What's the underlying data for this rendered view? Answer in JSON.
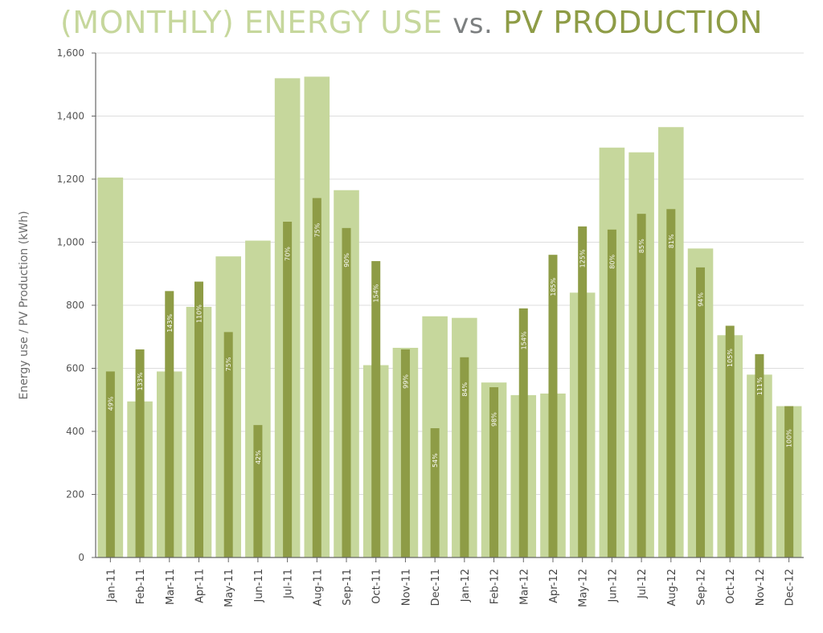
{
  "title": {
    "part1": "(MONTHLY) ENERGY USE",
    "part2": "vs.",
    "part3": "PV PRODUCTION"
  },
  "colors": {
    "energy_use": "#c6d79c",
    "pv_production": "#8e9c46",
    "grid": "#dddddd",
    "axis": "#666666"
  },
  "chart_data": {
    "type": "bar",
    "ylabel": "Energy use / PV Production (kWh)",
    "ylim": [
      0,
      1600
    ],
    "yticks": [
      0,
      200,
      400,
      600,
      800,
      1000,
      1200,
      1400,
      1600
    ],
    "ytick_labels": [
      "0",
      "200",
      "400",
      "600",
      "800",
      "1,000",
      "1,200",
      "1,400",
      "1,600"
    ],
    "grid": true,
    "categories": [
      "Jan-11",
      "Feb-11",
      "Mar-11",
      "Apr-11",
      "May-11",
      "Jun-11",
      "Jul-11",
      "Aug-11",
      "Sep-11",
      "Oct-11",
      "Nov-11",
      "Dec-11",
      "Jan-12",
      "Feb-12",
      "Mar-12",
      "Apr-12",
      "May-12",
      "Jun-12",
      "Jul-12",
      "Aug-12",
      "Sep-12",
      "Oct-12",
      "Nov-12",
      "Dec-12"
    ],
    "series": [
      {
        "values": [
          1205,
          495,
          590,
          795,
          955,
          1005,
          1520,
          1525,
          1165,
          610,
          665,
          765,
          760,
          555,
          515,
          520,
          840,
          1300,
          1285,
          1365,
          980,
          705,
          580,
          480
        ]
      },
      {
        "values": [
          590,
          660,
          845,
          875,
          715,
          420,
          1065,
          1140,
          1045,
          940,
          660,
          410,
          635,
          540,
          790,
          960,
          1050,
          1040,
          1090,
          1105,
          920,
          735,
          645,
          480
        ]
      }
    ],
    "percent_labels": [
      "49%",
      "133%",
      "143%",
      "110%",
      "75%",
      "42%",
      "70%",
      "75%",
      "90%",
      "154%",
      "99%",
      "54%",
      "84%",
      "98%",
      "154%",
      "185%",
      "125%",
      "80%",
      "85%",
      "81%",
      "94%",
      "105%",
      "111%",
      "100%"
    ]
  }
}
